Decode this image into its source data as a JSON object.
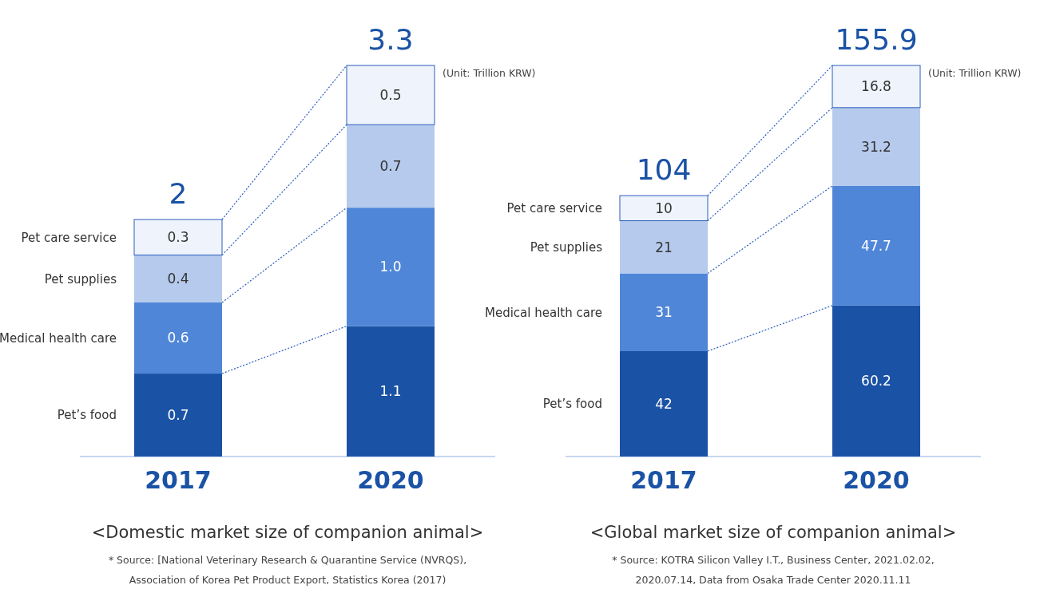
{
  "chart_data": [
    {
      "type": "bar",
      "stacked": true,
      "title": "<Domestic market size of companion animal>",
      "categories": [
        "2017",
        "2020"
      ],
      "legend": false,
      "data_labels": true,
      "totals": [
        "2",
        "3.3"
      ],
      "series": [
        {
          "name": "Pet’s food",
          "color": "#1a52a5",
          "values": [
            0.7,
            1.1
          ],
          "value_labels": [
            "0.7",
            "1.1"
          ]
        },
        {
          "name": "Medical health care",
          "color": "#4f86d8",
          "values": [
            0.6,
            1.0
          ],
          "value_labels": [
            "0.6",
            "1.0"
          ]
        },
        {
          "name": "Pet supplies",
          "color": "#b5caec",
          "values": [
            0.4,
            0.7
          ],
          "value_labels": [
            "0.4",
            "0.7"
          ]
        },
        {
          "name": "Pet care service",
          "color": "#eff4fc",
          "values": [
            0.3,
            0.5
          ],
          "value_labels": [
            "0.3",
            "0.5"
          ]
        }
      ],
      "annotations": [
        "(Unit: Trillion KRW)",
        "* Source: [National Veterinary Research & Quarantine Service (NVRQS), Association of Korea Pet Product Export, Statistics Korea (2017)"
      ]
    },
    {
      "type": "bar",
      "stacked": true,
      "title": "<Global market size of companion animal>",
      "categories": [
        "2017",
        "2020"
      ],
      "legend": false,
      "data_labels": true,
      "totals": [
        "104",
        "155.9"
      ],
      "series": [
        {
          "name": "Pet’s food",
          "color": "#1a52a5",
          "values": [
            42,
            60.2
          ],
          "value_labels": [
            "42",
            "60.2"
          ]
        },
        {
          "name": "Medical health care",
          "color": "#4f86d8",
          "values": [
            31,
            47.7
          ],
          "value_labels": [
            "31",
            "47.7"
          ]
        },
        {
          "name": "Pet supplies",
          "color": "#b5caec",
          "values": [
            21,
            31.2
          ],
          "value_labels": [
            "21",
            "31.2"
          ]
        },
        {
          "name": "Pet care service",
          "color": "#eff4fc",
          "values": [
            10,
            16.8
          ],
          "value_labels": [
            "10",
            "16.8"
          ]
        }
      ],
      "annotations": [
        "(Unit: Trillion KRW)",
        "* Source: KOTRA Silicon Valley I.T., Business Center, 2021.02.02, 2020.07.14, Data from Osaka Trade Center 2020.11.11"
      ]
    }
  ]
}
